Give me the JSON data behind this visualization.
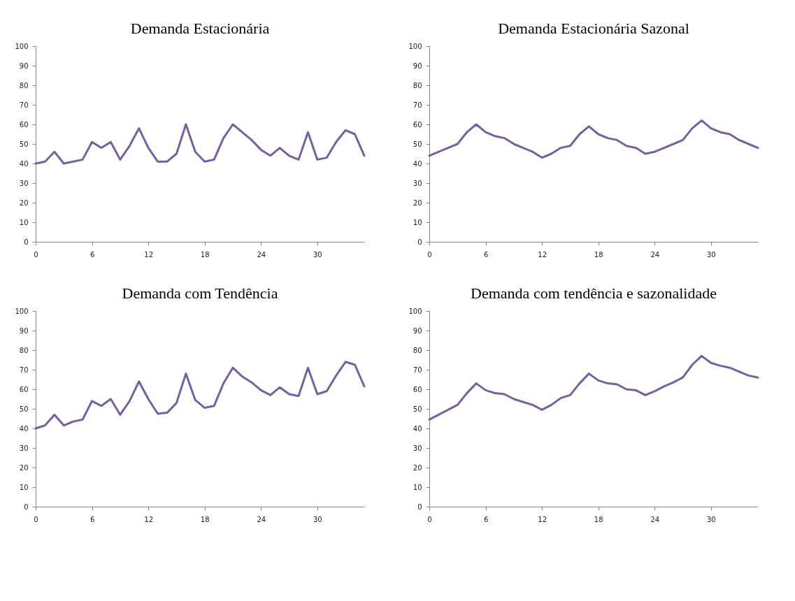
{
  "chart_data": [
    {
      "type": "line",
      "title": "Demanda Estacionária",
      "x": [
        0,
        1,
        2,
        3,
        4,
        5,
        6,
        7,
        8,
        9,
        10,
        11,
        12,
        13,
        14,
        15,
        16,
        17,
        18,
        19,
        20,
        21,
        22,
        23,
        24,
        25,
        26,
        27,
        28,
        29,
        30,
        31,
        32,
        33,
        34,
        35
      ],
      "xlim": [
        0,
        35
      ],
      "xticks": [
        0,
        6,
        12,
        18,
        24,
        30
      ],
      "ylim": [
        0,
        100
      ],
      "yticks": [
        0,
        10,
        20,
        30,
        40,
        50,
        60,
        70,
        80,
        90,
        100
      ],
      "grid": false,
      "legend": false,
      "series": [
        {
          "color": "#7760a0",
          "values": [
            40,
            41,
            46,
            40,
            41,
            42,
            51,
            48,
            51,
            42,
            49,
            58,
            48,
            41,
            41,
            45,
            60,
            46,
            41,
            42,
            53,
            60,
            56,
            52,
            47,
            44,
            48,
            44,
            42,
            56,
            42,
            43,
            51,
            57,
            55,
            44
          ]
        }
      ]
    },
    {
      "type": "line",
      "title": "Demanda  Estacionária Sazonal",
      "x": [
        0,
        1,
        2,
        3,
        4,
        5,
        6,
        7,
        8,
        9,
        10,
        11,
        12,
        13,
        14,
        15,
        16,
        17,
        18,
        19,
        20,
        21,
        22,
        23,
        24,
        25,
        26,
        27,
        28,
        29,
        30,
        31,
        32,
        33,
        34,
        35
      ],
      "xlim": [
        0,
        35
      ],
      "xticks": [
        0,
        6,
        12,
        18,
        24,
        30
      ],
      "ylim": [
        0,
        100
      ],
      "yticks": [
        0,
        10,
        20,
        30,
        40,
        50,
        60,
        70,
        80,
        90,
        100
      ],
      "grid": false,
      "legend": false,
      "series": [
        {
          "color": "#7760a0",
          "values": [
            44,
            46,
            48,
            50,
            56,
            60,
            56,
            54,
            53,
            50,
            48,
            46,
            43,
            45,
            48,
            49,
            55,
            59,
            55,
            53,
            52,
            49,
            48,
            45,
            46,
            48,
            50,
            52,
            58,
            62,
            58,
            56,
            55,
            52,
            50,
            48
          ]
        }
      ]
    },
    {
      "type": "line",
      "title": "Demanda com Tendência",
      "x": [
        0,
        1,
        2,
        3,
        4,
        5,
        6,
        7,
        8,
        9,
        10,
        11,
        12,
        13,
        14,
        15,
        16,
        17,
        18,
        19,
        20,
        21,
        22,
        23,
        24,
        25,
        26,
        27,
        28,
        29,
        30,
        31,
        32,
        33,
        34,
        35
      ],
      "xlim": [
        0,
        35
      ],
      "xticks": [
        0,
        6,
        12,
        18,
        24,
        30
      ],
      "ylim": [
        0,
        100
      ],
      "yticks": [
        0,
        10,
        20,
        30,
        40,
        50,
        60,
        70,
        80,
        90,
        100
      ],
      "grid": false,
      "legend": false,
      "series": [
        {
          "color": "#7760a0",
          "values": [
            40,
            41.5,
            47,
            41.5,
            43.5,
            44.5,
            54,
            51.5,
            55,
            47,
            54,
            64,
            55,
            47.5,
            48,
            53,
            68,
            54.5,
            50.5,
            51.5,
            63,
            71,
            66.5,
            63.5,
            59.5,
            57,
            61,
            57.5,
            56.5,
            71,
            57.5,
            59,
            67,
            74,
            72.5,
            61.5
          ]
        }
      ]
    },
    {
      "type": "line",
      "title": "Demanda com tendência e sazonalidade",
      "x": [
        0,
        1,
        2,
        3,
        4,
        5,
        6,
        7,
        8,
        9,
        10,
        11,
        12,
        13,
        14,
        15,
        16,
        17,
        18,
        19,
        20,
        21,
        22,
        23,
        24,
        25,
        26,
        27,
        28,
        29,
        30,
        31,
        32,
        33,
        34,
        35
      ],
      "xlim": [
        0,
        35
      ],
      "xticks": [
        0,
        6,
        12,
        18,
        24,
        30
      ],
      "ylim": [
        0,
        100
      ],
      "yticks": [
        0,
        10,
        20,
        30,
        40,
        50,
        60,
        70,
        80,
        90,
        100
      ],
      "grid": false,
      "legend": false,
      "series": [
        {
          "color": "#7760a0",
          "values": [
            44.5,
            47,
            49.5,
            52,
            58,
            63,
            59.5,
            58,
            57.5,
            55,
            53.5,
            52,
            49.5,
            52,
            55.5,
            57,
            63,
            68,
            64.5,
            63,
            62.5,
            60,
            59.5,
            57,
            59,
            61.5,
            63.5,
            66,
            72.5,
            77,
            73.5,
            72,
            71,
            69,
            67,
            66
          ]
        }
      ]
    }
  ]
}
